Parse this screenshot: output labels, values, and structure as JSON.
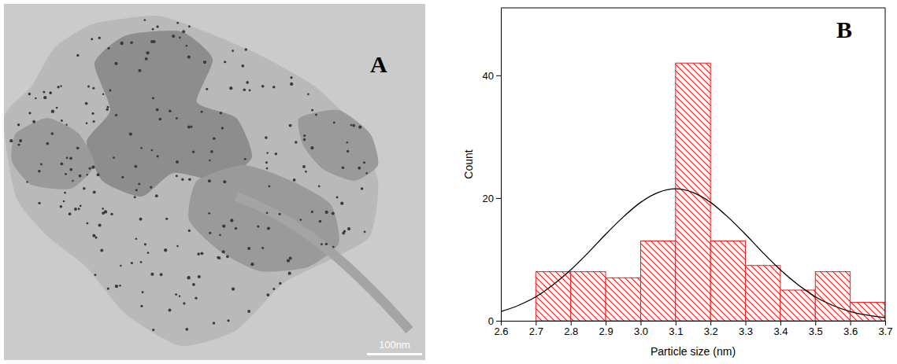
{
  "chart_data": [
    {
      "type": "image",
      "title": "A",
      "annotations": [
        "100nm"
      ]
    },
    {
      "type": "histogram",
      "title": "B",
      "xlabel": "Particle size (nm)",
      "ylabel": "Count",
      "bins": [
        2.7,
        2.8,
        2.9,
        3.0,
        3.1,
        3.2,
        3.3,
        3.4,
        3.5,
        3.6,
        3.7
      ],
      "values": [
        8,
        8,
        7,
        13,
        42,
        13,
        9,
        5,
        8,
        3
      ],
      "color": "#e8201f",
      "xlim": [
        2.6,
        3.7
      ],
      "xticks": [
        2.6,
        2.7,
        2.8,
        2.9,
        {
          "value": 3,
          "label": "3.0"
        },
        3.1,
        3.2,
        3.3,
        3.4,
        3.5,
        3.6,
        3.7
      ],
      "ylim": [
        0,
        51
      ],
      "yticks": [
        0,
        20,
        40
      ],
      "grid": false,
      "series": [
        {
          "type": "line",
          "color": "#000000",
          "x": [
            2.6,
            2.65,
            2.7,
            2.75,
            2.8,
            2.85,
            2.9,
            2.95,
            3.0,
            3.05,
            3.1,
            3.15,
            3.2,
            3.25,
            3.3,
            3.35,
            3.4,
            3.45,
            3.5,
            3.55,
            3.6,
            3.65,
            3.7
          ],
          "values": [
            1.5,
            2.5,
            3.9,
            5.9,
            8.3,
            11.1,
            14.1,
            16.9,
            19.3,
            20.9,
            21.5,
            20.9,
            19.3,
            16.9,
            14.1,
            11.1,
            8.3,
            5.9,
            3.9,
            2.5,
            1.5,
            0.9,
            0.5
          ]
        }
      ]
    }
  ]
}
